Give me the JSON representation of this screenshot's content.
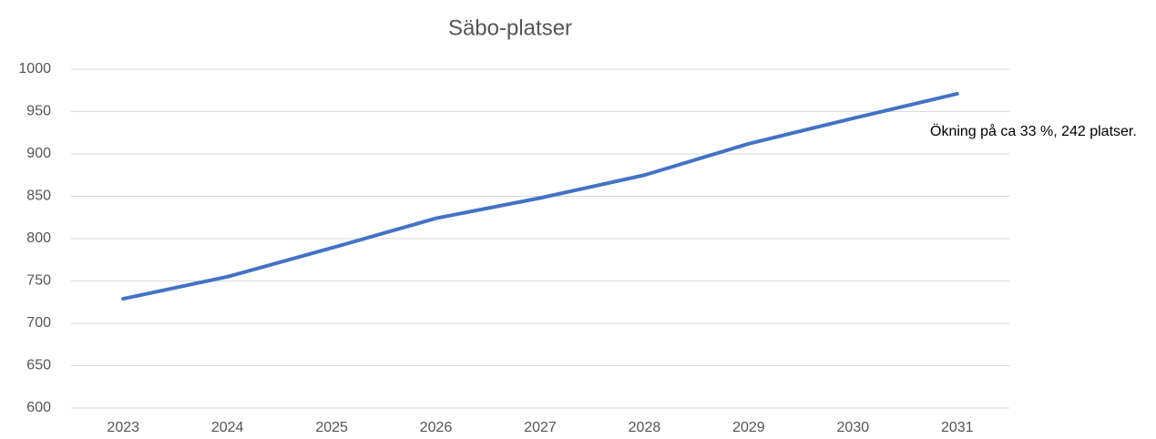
{
  "chart_data": {
    "type": "line",
    "title": "Säbo-platser",
    "categories": [
      "2023",
      "2024",
      "2025",
      "2026",
      "2027",
      "2028",
      "2029",
      "2030",
      "2031"
    ],
    "series": [
      {
        "name": "Säbo-platser",
        "color": "#4472c4",
        "values": [
          729,
          755,
          789,
          824,
          848,
          875,
          912,
          942,
          971
        ]
      }
    ],
    "ylim": [
      600,
      1000
    ],
    "yticks": [
      600,
      650,
      700,
      750,
      800,
      850,
      900,
      950,
      1000
    ],
    "grid": true,
    "annotation": "Ökning på ca 33 %, 242 platser."
  }
}
